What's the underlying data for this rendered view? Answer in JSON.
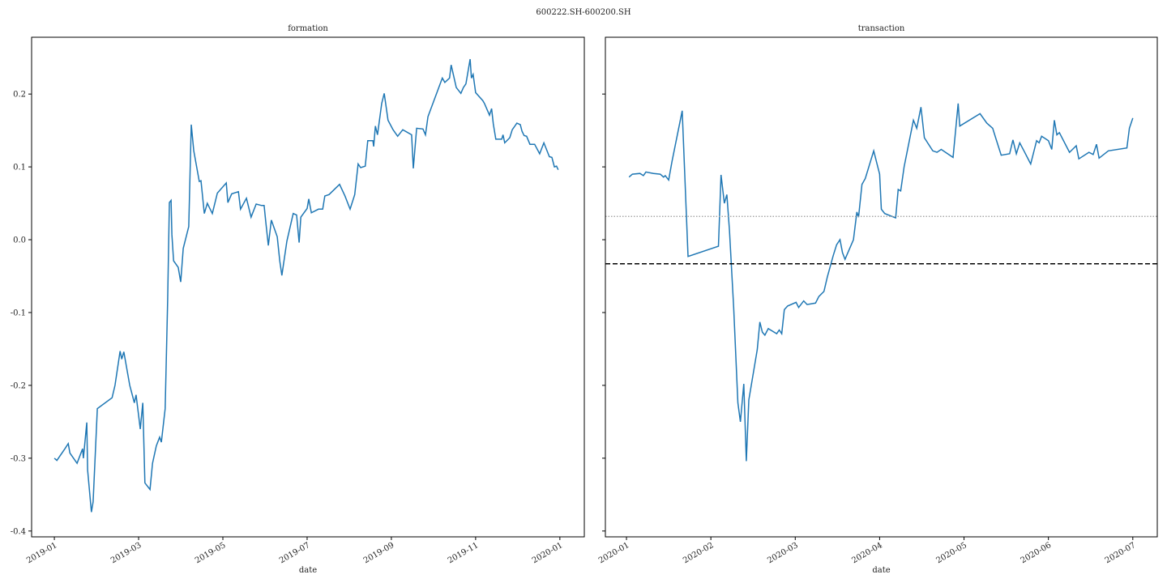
{
  "suptitle": "600222.SH-600200.SH",
  "chart_data": [
    {
      "type": "line",
      "title": "formation",
      "x_label": "date",
      "color": "#1f77b4",
      "xlim": [
        -0.54,
        12.58
      ],
      "xticks": [
        {
          "value": 0,
          "label": "2019-01"
        },
        {
          "value": 2,
          "label": "2019-03"
        },
        {
          "value": 4,
          "label": "2019-05"
        },
        {
          "value": 6,
          "label": "2019-07"
        },
        {
          "value": 8,
          "label": "2019-09"
        },
        {
          "value": 10,
          "label": "2019-11"
        },
        {
          "value": 12,
          "label": "2020-01"
        }
      ],
      "ylim": [
        -0.408,
        0.278
      ],
      "yticks": [
        {
          "value": -0.4,
          "label": "-0.4"
        },
        {
          "value": -0.3,
          "label": "-0.3"
        },
        {
          "value": -0.2,
          "label": "-0.2"
        },
        {
          "value": -0.1,
          "label": "-0.1"
        },
        {
          "value": 0,
          "label": "0.0"
        },
        {
          "value": 0.1,
          "label": "0.1"
        },
        {
          "value": 0.2,
          "label": "0.2"
        }
      ],
      "show_ytick_labels": true,
      "x": [
        0,
        0.06,
        0.25,
        0.33,
        0.37,
        0.54,
        0.67,
        0.69,
        0.77,
        0.79,
        0.88,
        0.92,
        1.02,
        1.37,
        1.44,
        1.56,
        1.6,
        1.65,
        1.79,
        1.9,
        1.94,
        2.04,
        2.1,
        2.15,
        2.27,
        2.33,
        2.42,
        2.5,
        2.54,
        2.63,
        2.69,
        2.73,
        2.77,
        2.79,
        2.83,
        2.94,
        3,
        3.06,
        3.19,
        3.25,
        3.31,
        3.44,
        3.48,
        3.56,
        3.63,
        3.75,
        3.87,
        4.08,
        4.12,
        4.21,
        4.37,
        4.42,
        4.56,
        4.67,
        4.79,
        4.92,
        4.98,
        5.02,
        5.08,
        5.15,
        5.29,
        5.35,
        5.4,
        5.52,
        5.67,
        5.75,
        5.81,
        5.85,
        6,
        6.04,
        6.1,
        6.27,
        6.37,
        6.42,
        6.52,
        6.77,
        6.9,
        7.02,
        7.13,
        7.21,
        7.27,
        7.38,
        7.44,
        7.56,
        7.58,
        7.62,
        7.67,
        7.77,
        7.83,
        7.92,
        8.04,
        8.15,
        8.27,
        8.48,
        8.52,
        8.6,
        8.75,
        8.81,
        8.87,
        9.21,
        9.27,
        9.38,
        9.42,
        9.54,
        9.65,
        9.71,
        9.77,
        9.87,
        9.9,
        9.94,
        10,
        10.17,
        10.21,
        10.33,
        10.38,
        10.42,
        10.48,
        10.62,
        10.65,
        10.69,
        10.81,
        10.87,
        10.98,
        11.06,
        11.1,
        11.15,
        11.21,
        11.29,
        11.4,
        11.52,
        11.62,
        11.75,
        11.81,
        11.87,
        11.92,
        11.96
      ],
      "values": [
        -0.3,
        -0.303,
        -0.287,
        -0.28,
        -0.293,
        -0.307,
        -0.287,
        -0.3,
        -0.251,
        -0.316,
        -0.374,
        -0.36,
        -0.232,
        -0.217,
        -0.2,
        -0.153,
        -0.164,
        -0.154,
        -0.2,
        -0.224,
        -0.213,
        -0.26,
        -0.224,
        -0.334,
        -0.343,
        -0.307,
        -0.283,
        -0.271,
        -0.278,
        -0.232,
        -0.082,
        0.051,
        0.054,
        0.007,
        -0.029,
        -0.038,
        -0.058,
        -0.012,
        0.018,
        0.158,
        0.122,
        0.08,
        0.081,
        0.036,
        0.05,
        0.036,
        0.064,
        0.078,
        0.051,
        0.063,
        0.066,
        0.042,
        0.057,
        0.031,
        0.049,
        0.047,
        0.047,
        0.024,
        -0.008,
        0.027,
        0.004,
        -0.029,
        -0.049,
        -0.002,
        0.036,
        0.034,
        -0.004,
        0.031,
        0.043,
        0.056,
        0.037,
        0.042,
        0.042,
        0.06,
        0.062,
        0.076,
        0.06,
        0.042,
        0.062,
        0.104,
        0.099,
        0.101,
        0.136,
        0.136,
        0.128,
        0.156,
        0.144,
        0.187,
        0.201,
        0.164,
        0.151,
        0.142,
        0.151,
        0.144,
        0.098,
        0.153,
        0.152,
        0.144,
        0.169,
        0.222,
        0.216,
        0.222,
        0.24,
        0.209,
        0.201,
        0.209,
        0.214,
        0.248,
        0.222,
        0.227,
        0.202,
        0.191,
        0.187,
        0.171,
        0.18,
        0.159,
        0.138,
        0.138,
        0.144,
        0.133,
        0.14,
        0.151,
        0.16,
        0.158,
        0.149,
        0.143,
        0.142,
        0.131,
        0.131,
        0.118,
        0.133,
        0.114,
        0.113,
        0.1,
        0.101,
        0.096
      ],
      "hlines": []
    },
    {
      "type": "line",
      "title": "transaction",
      "x_label": "date",
      "color": "#1f77b4",
      "xlim": [
        -0.25,
        6.29
      ],
      "xticks": [
        {
          "value": 0,
          "label": "2020-01"
        },
        {
          "value": 1,
          "label": "2020-02"
        },
        {
          "value": 2,
          "label": "2020-03"
        },
        {
          "value": 3,
          "label": "2020-04"
        },
        {
          "value": 4,
          "label": "2020-05"
        },
        {
          "value": 5,
          "label": "2020-06"
        },
        {
          "value": 6,
          "label": "2020-07"
        }
      ],
      "ylim": [
        -0.408,
        0.278
      ],
      "yticks": [
        -0.4,
        -0.3,
        -0.2,
        -0.1,
        0,
        0.1,
        0.2
      ],
      "show_ytick_labels": false,
      "x": [
        0.03,
        0.07,
        0.16,
        0.2,
        0.23,
        0.32,
        0.4,
        0.44,
        0.46,
        0.5,
        0.54,
        0.66,
        0.73,
        1.09,
        1.12,
        1.16,
        1.19,
        1.22,
        1.27,
        1.32,
        1.35,
        1.39,
        1.42,
        1.45,
        1.55,
        1.58,
        1.61,
        1.64,
        1.68,
        1.78,
        1.81,
        1.84,
        1.87,
        1.91,
        2.01,
        2.04,
        2.1,
        2.14,
        2.24,
        2.28,
        2.34,
        2.38,
        2.45,
        2.49,
        2.53,
        2.56,
        2.59,
        2.63,
        2.69,
        2.73,
        2.75,
        2.79,
        2.83,
        2.93,
        3,
        3.02,
        3.06,
        3.19,
        3.22,
        3.25,
        3.29,
        3.4,
        3.44,
        3.49,
        3.53,
        3.63,
        3.68,
        3.73,
        3.87,
        3.93,
        3.95,
        4.19,
        4.27,
        4.34,
        4.38,
        4.44,
        4.54,
        4.58,
        4.62,
        4.66,
        4.71,
        4.79,
        4.86,
        4.89,
        4.92,
        5,
        5.04,
        5.07,
        5.1,
        5.13,
        5.25,
        5.33,
        5.36,
        5.48,
        5.53,
        5.57,
        5.6,
        5.71,
        5.93,
        5.96,
        6
      ],
      "values": [
        0.086,
        0.09,
        0.091,
        0.088,
        0.093,
        0.091,
        0.09,
        0.086,
        0.088,
        0.082,
        0.108,
        0.177,
        -0.023,
        -0.009,
        0.089,
        0.05,
        0.062,
        0.013,
        -0.093,
        -0.224,
        -0.25,
        -0.198,
        -0.304,
        -0.22,
        -0.151,
        -0.113,
        -0.127,
        -0.131,
        -0.122,
        -0.129,
        -0.124,
        -0.129,
        -0.096,
        -0.091,
        -0.086,
        -0.093,
        -0.084,
        -0.089,
        -0.087,
        -0.078,
        -0.071,
        -0.051,
        -0.022,
        -0.007,
        0,
        -0.018,
        -0.027,
        -0.016,
        0,
        0.038,
        0.031,
        0.076,
        0.084,
        0.122,
        0.09,
        0.042,
        0.036,
        0.03,
        0.069,
        0.067,
        0.1,
        0.164,
        0.153,
        0.182,
        0.14,
        0.122,
        0.12,
        0.124,
        0.113,
        0.187,
        0.156,
        0.173,
        0.16,
        0.153,
        0.138,
        0.116,
        0.118,
        0.137,
        0.118,
        0.133,
        0.122,
        0.104,
        0.136,
        0.133,
        0.142,
        0.136,
        0.124,
        0.164,
        0.144,
        0.147,
        0.12,
        0.129,
        0.111,
        0.12,
        0.117,
        0.131,
        0.112,
        0.122,
        0.126,
        0.153,
        0.167
      ],
      "hlines": [
        {
          "value": 0.032,
          "color": "#999999",
          "style": "dotted"
        },
        {
          "value": -0.033,
          "color": "#000000",
          "style": "dashed"
        }
      ]
    }
  ]
}
